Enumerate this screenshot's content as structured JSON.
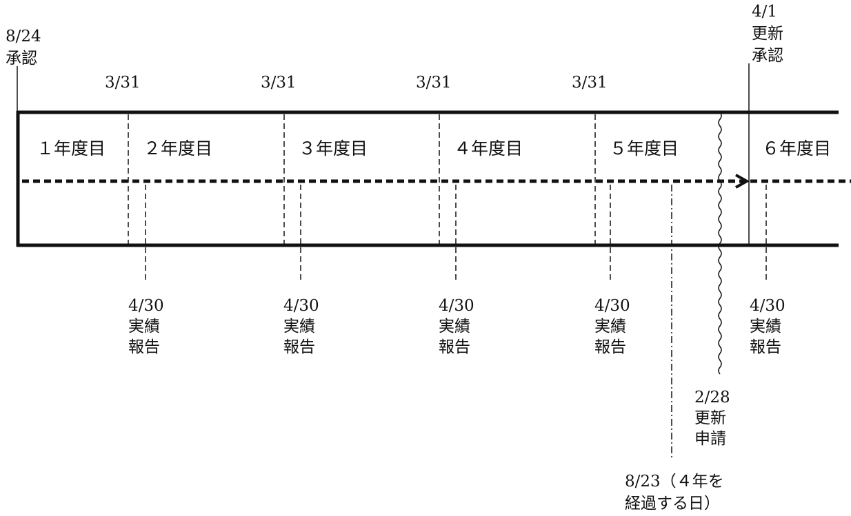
{
  "approval": {
    "date": "8/24",
    "label": "承認"
  },
  "renewal_approval": {
    "date": "4/1",
    "line1": "更新",
    "line2": "承認"
  },
  "fiscal_year_end": [
    "3/31",
    "3/31",
    "3/31",
    "3/31"
  ],
  "years": [
    "１年度目",
    "２年度目",
    "３年度目",
    "４年度目",
    "５年度目",
    "６年度目"
  ],
  "reports": [
    {
      "date": "4/30",
      "line1": "実績",
      "line2": "報告"
    },
    {
      "date": "4/30",
      "line1": "実績",
      "line2": "報告"
    },
    {
      "date": "4/30",
      "line1": "実績",
      "line2": "報告"
    },
    {
      "date": "4/30",
      "line1": "実績",
      "line2": "報告"
    },
    {
      "date": "4/30",
      "line1": "実績",
      "line2": "報告"
    }
  ],
  "renewal_application": {
    "date": "2/28",
    "line1": "更新",
    "line2": "申請"
  },
  "four_year_mark": {
    "line1": "8/23（４年を",
    "line2": "経過する日）"
  }
}
